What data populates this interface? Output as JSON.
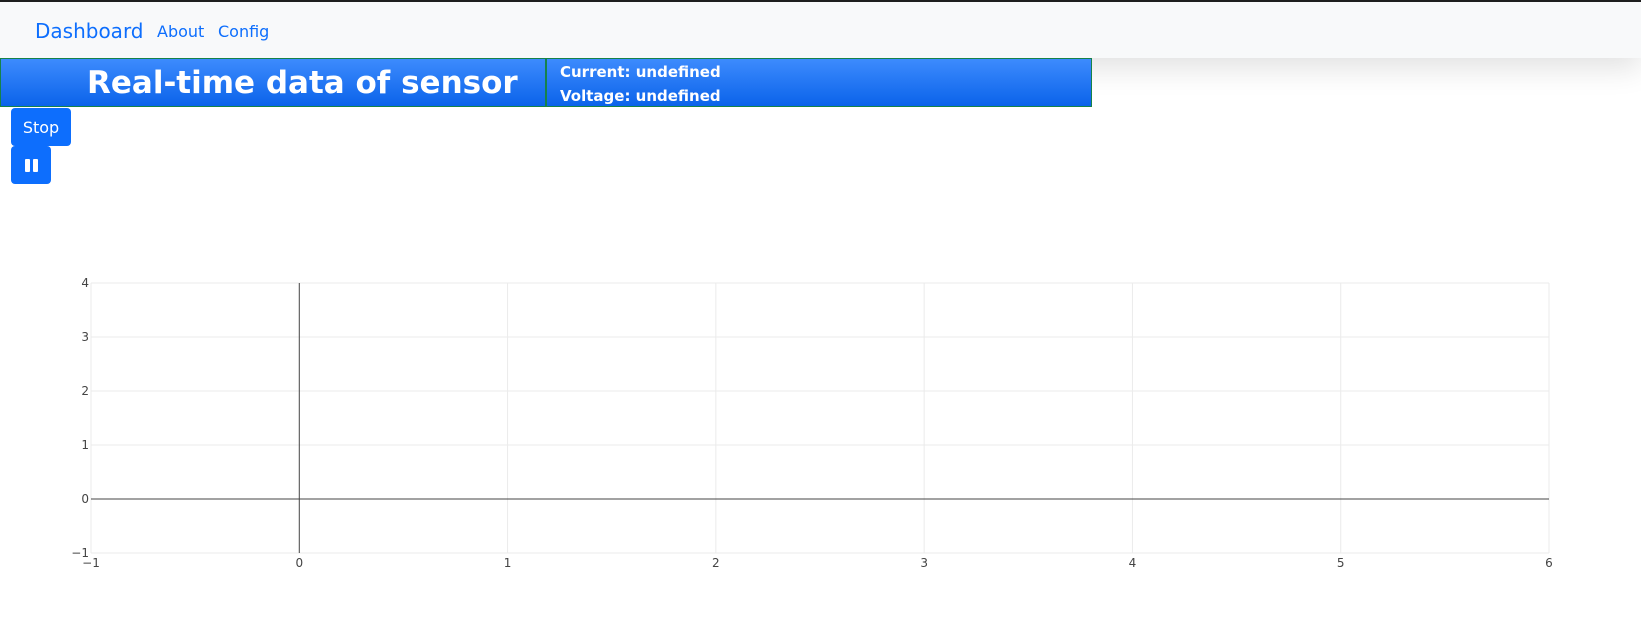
{
  "navbar": {
    "brand": "Dashboard",
    "links": [
      "About",
      "Config"
    ]
  },
  "banner": {
    "title": "Real-time data of sensor",
    "current": "Current: undefined",
    "voltage": "Voltage: undefined"
  },
  "controls": {
    "stop_label": "Stop",
    "pause_icon": "pause-icon"
  },
  "colors": {
    "accent": "#0d6efd",
    "banner_border": "#16824a"
  },
  "chart_data": {
    "type": "line",
    "series": [],
    "title": "",
    "xlabel": "",
    "ylabel": "",
    "xlim": [
      -1,
      6
    ],
    "ylim": [
      -1,
      4
    ],
    "x_ticks": [
      "−1",
      "0",
      "1",
      "2",
      "3",
      "4",
      "5",
      "6"
    ],
    "y_ticks": [
      "−1",
      "0",
      "1",
      "2",
      "3",
      "4"
    ],
    "grid": true
  }
}
